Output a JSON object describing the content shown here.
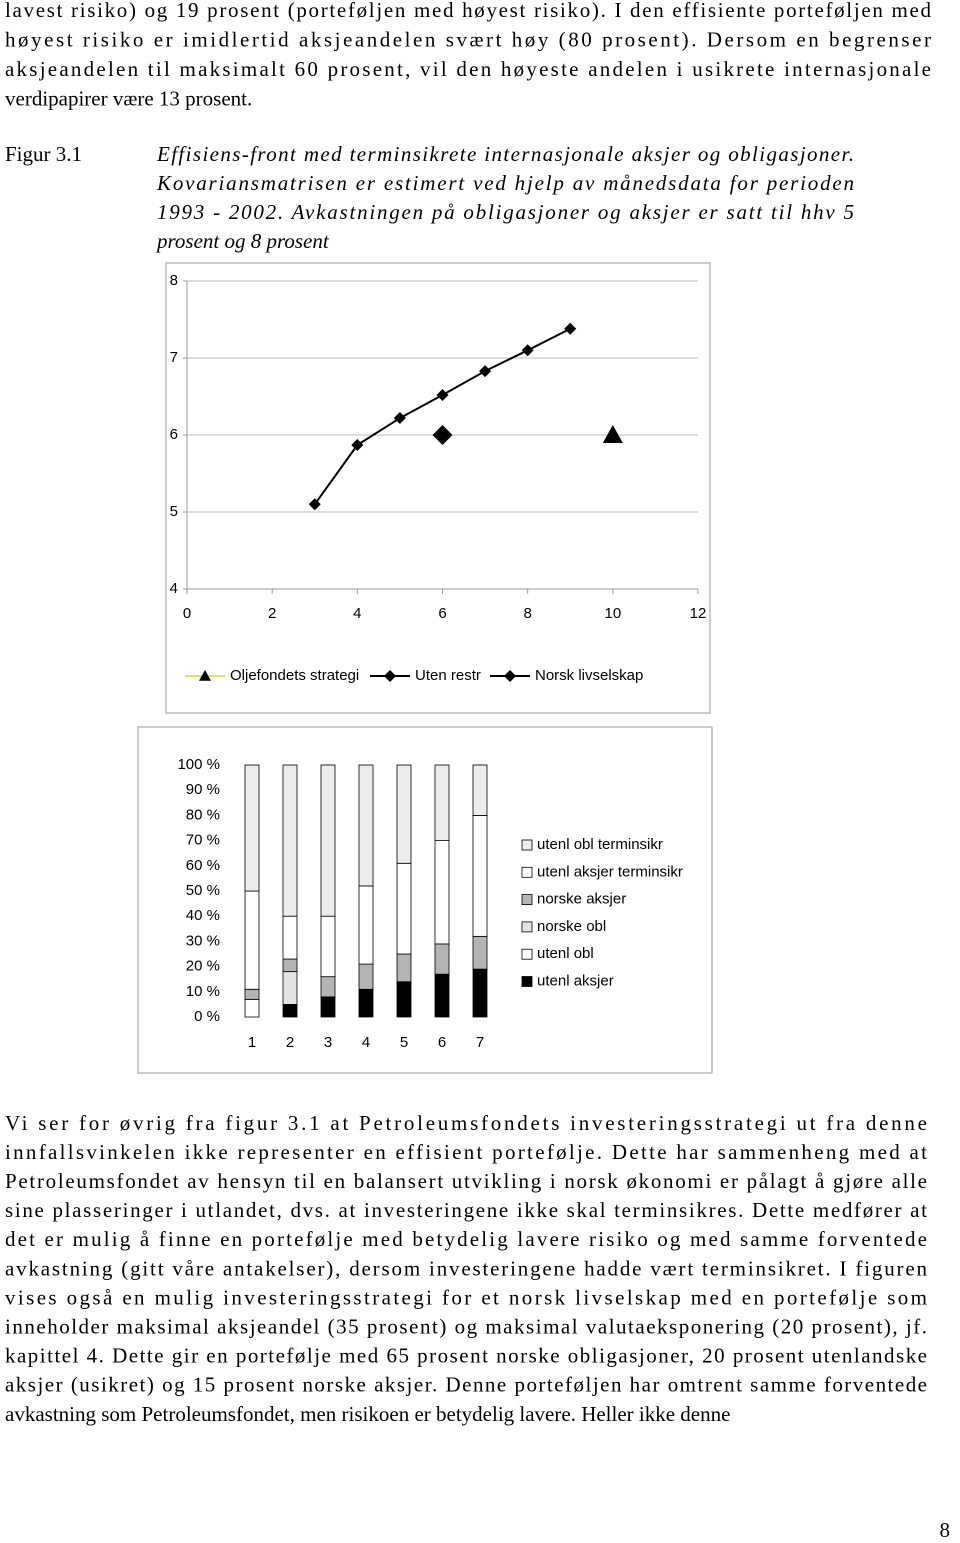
{
  "paragraph_1": [
    "lavest risiko) og 19 prosent (porteføljen med høyest risiko). I den effisiente porteføljen med",
    "høyest risiko er imidlertid aksjeandelen svært høy (80 prosent). Dersom en begrenser",
    "aksjeandelen til maksimalt 60 prosent, vil den høyeste andelen i usikrete internasjonale",
    "verdipapirer være 13 prosent."
  ],
  "figure": {
    "label": "Figur 3.1",
    "caption": [
      "Effisiens-front med terminsikrete internasjonale aksjer og obligasjoner.",
      "Kovariansmatrisen er estimert ved hjelp av månedsdata for perioden",
      "1993 - 2002. Avkastningen på obligasjoner og aksjer er satt til hhv 5",
      "prosent og 8 prosent"
    ]
  },
  "chart_data": [
    {
      "type": "line",
      "xlim": [
        0,
        12
      ],
      "ylim": [
        4,
        8
      ],
      "xticks": [
        0,
        2,
        4,
        6,
        8,
        10,
        12
      ],
      "yticks": [
        4,
        5,
        6,
        7,
        8
      ],
      "grid": true,
      "legend": "bottom",
      "series": [
        {
          "name": "Oljefondets strategi",
          "color": "#000000",
          "marker": "triangle",
          "x": [
            10
          ],
          "values": [
            6.0
          ]
        },
        {
          "name": "Uten restr",
          "color": "#000000",
          "marker": "diamond",
          "x": [
            3,
            4,
            5,
            6,
            7,
            8,
            9
          ],
          "values": [
            5.1,
            5.87,
            6.22,
            6.52,
            6.83,
            7.1,
            7.38
          ]
        },
        {
          "name": "Norsk livselskap",
          "color": "#000000",
          "marker": "diamond",
          "x": [
            6
          ],
          "values": [
            6.0
          ]
        }
      ]
    },
    {
      "type": "bar",
      "stacked": true,
      "categories": [
        "1",
        "2",
        "3",
        "4",
        "5",
        "6",
        "7"
      ],
      "ylim": [
        0,
        100
      ],
      "legend": "right",
      "yticks": [
        {
          "value": 0,
          "label": "0 %"
        },
        {
          "value": 10,
          "label": "10 %"
        },
        {
          "value": 20,
          "label": "20 %"
        },
        {
          "value": 30,
          "label": "30 %"
        },
        {
          "value": 40,
          "label": "40 %"
        },
        {
          "value": 50,
          "label": "50 %"
        },
        {
          "value": 60,
          "label": "60 %"
        },
        {
          "value": 70,
          "label": "70 %"
        },
        {
          "value": 80,
          "label": "80 %"
        },
        {
          "value": 90,
          "label": "90 %"
        },
        {
          "value": 100,
          "label": "100 %"
        }
      ],
      "series": [
        {
          "name": "utenl aksjer",
          "color": "#000000",
          "values": [
            0,
            5,
            8,
            11,
            14,
            17,
            19
          ]
        },
        {
          "name": "utenl obl",
          "color": "#ffffff",
          "values": [
            7,
            0,
            0,
            0,
            0,
            0,
            0
          ]
        },
        {
          "name": "norske obl",
          "color": "#e4e4e4",
          "values": [
            0,
            13,
            0,
            0,
            0,
            0,
            0
          ]
        },
        {
          "name": "norske aksjer",
          "color": "#b4b4b4",
          "values": [
            4,
            5,
            8,
            10,
            11,
            12,
            13
          ]
        },
        {
          "name": "utenl aksjer terminsikr",
          "color": "#ffffff",
          "values": [
            39,
            17,
            24,
            31,
            36,
            41,
            48
          ]
        },
        {
          "name": "utenl obl terminsikr",
          "color": "#ececec",
          "values": [
            50,
            60,
            60,
            48,
            39,
            30,
            20
          ]
        }
      ]
    }
  ],
  "paragraph_2": [
    "Vi ser for øvrig fra figur 3.1 at Petroleumsfondets investeringsstrategi ut fra denne",
    "innfallsvinkelen ikke representer en effisient portefølje. Dette har sammenheng med at",
    "Petroleumsfondet av hensyn til en balansert utvikling i norsk økonomi er pålagt å gjøre alle",
    "sine plasseringer i utlandet, dvs. at investeringene ikke skal terminsikres. Dette medfører at",
    "det er mulig å finne en portefølje med betydelig lavere risiko og med samme forventede",
    "avkastning (gitt våre antakelser), dersom investeringene hadde vært terminsikret. I figuren",
    "vises også en mulig investeringsstrategi for et norsk livselskap med en portefølje som",
    "inneholder maksimal aksjeandel (35 prosent) og maksimal valutaeksponering (20 prosent), jf.",
    "kapittel 4. Dette gir en portefølje med 65 prosent norske obligasjoner, 20 prosent utenlandske",
    "aksjer (usikret) og 15 prosent norske aksjer. Denne porteføljen har omtrent samme forventede",
    "avkastning som Petroleumsfondet, men risikoen er betydelig lavere. Heller ikke denne"
  ],
  "page_number": "8"
}
